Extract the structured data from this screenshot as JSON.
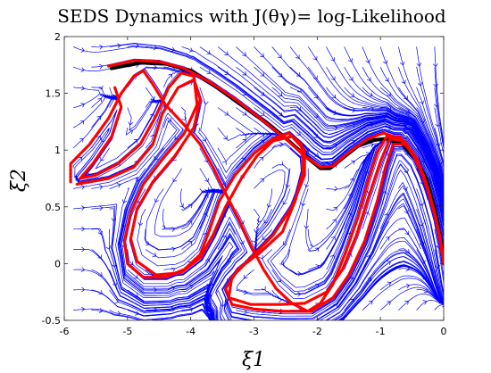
{
  "chart_data": {
    "type": "line",
    "title": "SEDS Dynamics with J(θγ)= log-Likelihood",
    "xlabel": "ξ1",
    "ylabel": "ξ2",
    "xlim": [
      -6,
      0
    ],
    "ylim": [
      -0.5,
      2
    ],
    "xticks": [
      "-6",
      "-5",
      "-4",
      "-3",
      "-2",
      "-1",
      "0"
    ],
    "yticks": [
      "-0.5",
      "0",
      "0.5",
      "1",
      "1.5",
      "2"
    ],
    "grid": false,
    "colors": {
      "streamlines": "#0000ff",
      "demonstrations": "#ff0000",
      "reproduction": "#000000"
    },
    "series": [
      {
        "kind": "reproduction",
        "points": [
          [
            -5.25,
            1.72
          ],
          [
            -4.8,
            1.77
          ],
          [
            -4.4,
            1.76
          ],
          [
            -4.0,
            1.7
          ],
          [
            -3.6,
            1.56
          ],
          [
            -3.2,
            1.4
          ],
          [
            -2.8,
            1.24
          ],
          [
            -2.45,
            1.08
          ],
          [
            -2.15,
            0.93
          ],
          [
            -1.95,
            0.84
          ],
          [
            -1.8,
            0.84
          ],
          [
            -1.6,
            0.93
          ],
          [
            -1.35,
            1.04
          ],
          [
            -1.1,
            1.09
          ],
          [
            -0.9,
            1.1
          ],
          [
            -0.65,
            1.05
          ],
          [
            -0.45,
            0.93
          ],
          [
            -0.28,
            0.75
          ],
          [
            -0.15,
            0.5
          ],
          [
            -0.06,
            0.25
          ],
          [
            0,
            0
          ]
        ]
      },
      {
        "kind": "demonstration",
        "points": [
          [
            -5.3,
            1.74
          ],
          [
            -4.9,
            1.79
          ],
          [
            -4.5,
            1.78
          ],
          [
            -4.1,
            1.72
          ],
          [
            -3.7,
            1.6
          ],
          [
            -3.3,
            1.45
          ],
          [
            -2.9,
            1.28
          ],
          [
            -2.5,
            1.1
          ],
          [
            -2.2,
            0.95
          ],
          [
            -1.95,
            0.85
          ],
          [
            -1.75,
            0.86
          ],
          [
            -1.5,
            0.98
          ],
          [
            -1.2,
            1.1
          ],
          [
            -0.95,
            1.15
          ],
          [
            -0.7,
            1.1
          ],
          [
            -0.5,
            0.98
          ],
          [
            -0.32,
            0.78
          ],
          [
            -0.18,
            0.52
          ],
          [
            -0.07,
            0.26
          ],
          [
            0,
            0
          ]
        ]
      },
      {
        "kind": "demonstration",
        "points": [
          [
            -5.9,
            0.72
          ],
          [
            -5.9,
            0.88
          ],
          [
            -5.6,
            1.05
          ],
          [
            -5.3,
            1.28
          ],
          [
            -5.1,
            1.5
          ],
          [
            -4.9,
            1.65
          ],
          [
            -4.75,
            1.7
          ],
          [
            -4.6,
            1.58
          ],
          [
            -4.4,
            1.4
          ],
          [
            -4.1,
            1.22
          ],
          [
            -3.85,
            1.05
          ],
          [
            -3.65,
            0.85
          ],
          [
            -3.45,
            0.62
          ],
          [
            -3.25,
            0.4
          ],
          [
            -3.05,
            0.16
          ],
          [
            -2.85,
            -0.05
          ],
          [
            -2.65,
            -0.22
          ],
          [
            -2.4,
            -0.35
          ],
          [
            -2.15,
            -0.42
          ],
          [
            -1.95,
            -0.35
          ],
          [
            -1.75,
            -0.18
          ],
          [
            -1.55,
            0.1
          ],
          [
            -1.35,
            0.42
          ],
          [
            -1.2,
            0.72
          ],
          [
            -1.05,
            0.98
          ],
          [
            -0.9,
            1.12
          ],
          [
            -0.7,
            1.12
          ],
          [
            -0.5,
            0.98
          ],
          [
            -0.32,
            0.76
          ],
          [
            -0.17,
            0.5
          ],
          [
            -0.06,
            0.24
          ],
          [
            0,
            0
          ]
        ]
      },
      {
        "kind": "demonstration",
        "points": [
          [
            -5.2,
            1.55
          ],
          [
            -5.1,
            1.38
          ],
          [
            -5.25,
            1.12
          ],
          [
            -5.55,
            0.88
          ],
          [
            -5.75,
            0.75
          ],
          [
            -5.5,
            0.78
          ],
          [
            -5.15,
            0.88
          ],
          [
            -4.8,
            1.05
          ],
          [
            -4.55,
            1.3
          ],
          [
            -4.35,
            1.55
          ],
          [
            -4.15,
            1.68
          ],
          [
            -3.95,
            1.65
          ],
          [
            -3.9,
            1.4
          ],
          [
            -4.1,
            1.15
          ],
          [
            -4.45,
            0.92
          ],
          [
            -4.75,
            0.7
          ],
          [
            -4.95,
            0.45
          ],
          [
            -5.05,
            0.2
          ],
          [
            -5.0,
            0.0
          ],
          [
            -4.75,
            -0.12
          ],
          [
            -4.4,
            -0.12
          ],
          [
            -4.1,
            -0.05
          ],
          [
            -3.85,
            0.08
          ],
          [
            -3.7,
            0.3
          ],
          [
            -3.55,
            0.55
          ],
          [
            -3.3,
            0.78
          ],
          [
            -3.0,
            0.97
          ],
          [
            -2.7,
            1.1
          ],
          [
            -2.45,
            1.15
          ],
          [
            -2.25,
            1.05
          ],
          [
            -2.22,
            0.82
          ],
          [
            -2.35,
            0.55
          ],
          [
            -2.55,
            0.28
          ],
          [
            -2.9,
            0.1
          ],
          [
            -3.25,
            -0.05
          ],
          [
            -3.45,
            -0.22
          ],
          [
            -3.35,
            -0.36
          ],
          [
            -3.0,
            -0.4
          ],
          [
            -2.55,
            -0.42
          ],
          [
            -2.1,
            -0.42
          ],
          [
            -1.75,
            -0.3
          ],
          [
            -1.5,
            -0.1
          ],
          [
            -1.25,
            0.2
          ],
          [
            -1.05,
            0.55
          ],
          [
            -0.92,
            0.85
          ],
          [
            -0.8,
            1.05
          ],
          [
            -0.6,
            1.05
          ],
          [
            -0.42,
            0.9
          ],
          [
            -0.26,
            0.66
          ],
          [
            -0.13,
            0.4
          ],
          [
            -0.04,
            0.15
          ],
          [
            0,
            0
          ]
        ]
      },
      {
        "kind": "demonstration",
        "points": [
          [
            -5.8,
            0.7
          ],
          [
            -5.3,
            0.75
          ],
          [
            -4.9,
            0.85
          ],
          [
            -4.6,
            1.05
          ],
          [
            -4.45,
            1.32
          ],
          [
            -4.2,
            1.55
          ],
          [
            -3.95,
            1.62
          ],
          [
            -3.85,
            1.45
          ],
          [
            -3.95,
            1.2
          ],
          [
            -4.25,
            0.95
          ],
          [
            -4.6,
            0.72
          ],
          [
            -4.85,
            0.48
          ],
          [
            -4.95,
            0.22
          ],
          [
            -4.85,
            0.02
          ],
          [
            -4.55,
            -0.1
          ],
          [
            -4.15,
            -0.08
          ],
          [
            -3.85,
            0.05
          ],
          [
            -3.65,
            0.25
          ],
          [
            -3.45,
            0.5
          ],
          [
            -3.2,
            0.75
          ],
          [
            -2.95,
            0.95
          ],
          [
            -2.7,
            1.08
          ],
          [
            -2.4,
            1.12
          ],
          [
            -2.2,
            1.0
          ],
          [
            -2.2,
            0.78
          ],
          [
            -2.4,
            0.5
          ],
          [
            -2.7,
            0.25
          ],
          [
            -3.05,
            0.05
          ],
          [
            -3.35,
            -0.12
          ],
          [
            -3.4,
            -0.3
          ],
          [
            -3.05,
            -0.36
          ],
          [
            -2.6,
            -0.36
          ],
          [
            -2.2,
            -0.35
          ],
          [
            -1.85,
            -0.25
          ],
          [
            -1.6,
            -0.05
          ],
          [
            -1.38,
            0.25
          ],
          [
            -1.18,
            0.6
          ],
          [
            -1.0,
            0.9
          ],
          [
            -0.85,
            1.1
          ],
          [
            -0.62,
            1.08
          ],
          [
            -0.42,
            0.92
          ],
          [
            -0.26,
            0.68
          ],
          [
            -0.13,
            0.42
          ],
          [
            -0.04,
            0.16
          ],
          [
            0,
            0
          ]
        ]
      }
    ]
  }
}
